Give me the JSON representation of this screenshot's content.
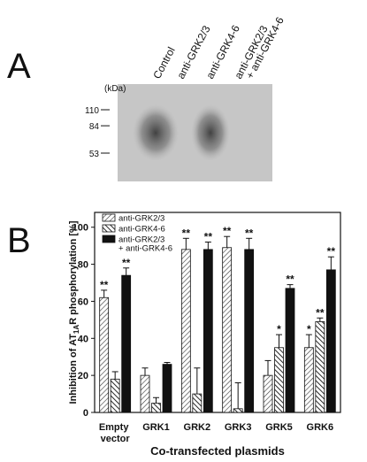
{
  "panel_a": {
    "label": "A",
    "kda_label": "(kDa)",
    "markers": [
      110,
      84,
      53
    ],
    "lanes": [
      [
        "Control"
      ],
      [
        "anti-GRK2/3"
      ],
      [
        "anti-GRK4-6"
      ],
      [
        "anti-GRK2/3",
        "+ anti-GRK4-6"
      ]
    ]
  },
  "chart_data": {
    "type": "bar",
    "panel_label": "B",
    "ylabel": [
      "Inhibition of AT",
      "1A",
      "R phosphorylation [%]"
    ],
    "xlabel": "Co-transfected plasmids",
    "categories": [
      "Empty vector",
      "GRK1",
      "GRK2",
      "GRK3",
      "GRK5",
      "GRK6"
    ],
    "series": [
      {
        "name": "anti-GRK2/3",
        "color": "#333333",
        "pattern": "hatch-right",
        "values": [
          62,
          20,
          88,
          89,
          20,
          35
        ],
        "errors": [
          4,
          4,
          6,
          6,
          8,
          7
        ],
        "significance": [
          "**",
          null,
          "**",
          "**",
          null,
          "*"
        ]
      },
      {
        "name": "anti-GRK4-6",
        "color": "#111111",
        "pattern": "hatch-left",
        "values": [
          18,
          5,
          10,
          2,
          35,
          49
        ],
        "errors": [
          4,
          3,
          14,
          14,
          7,
          2
        ],
        "significance": [
          null,
          null,
          null,
          null,
          "*",
          "**"
        ]
      },
      {
        "name": "anti-GRK2/3 + anti-GRK4-6",
        "color": "#111111",
        "pattern": "solid",
        "values": [
          74,
          26,
          88,
          88,
          67,
          77
        ],
        "errors": [
          4,
          1,
          4,
          6,
          2,
          7
        ],
        "significance": [
          "**",
          null,
          "**",
          "**",
          "**",
          "**"
        ]
      }
    ],
    "ylim": [
      0,
      108
    ],
    "yticks": [
      0,
      20,
      40,
      60,
      80,
      100
    ],
    "legend": "upper-left"
  }
}
